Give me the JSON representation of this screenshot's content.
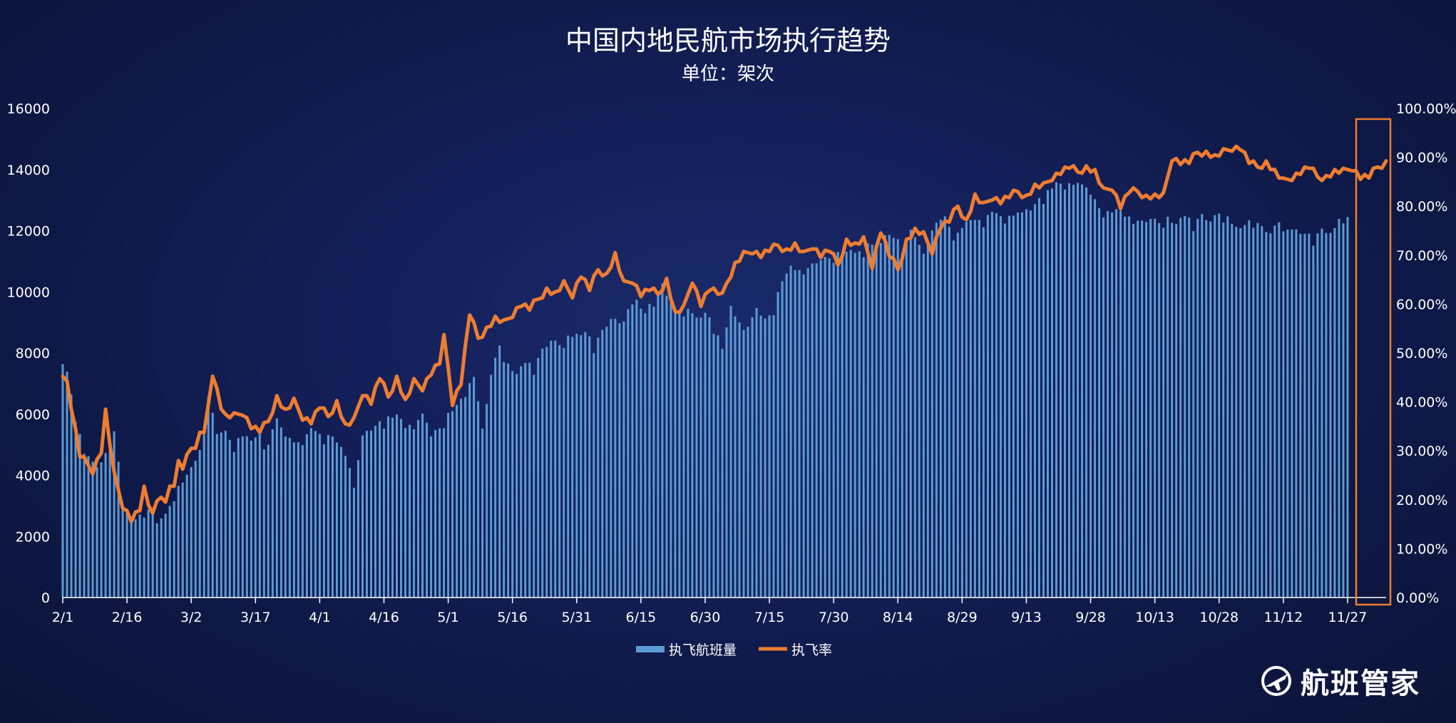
{
  "colors": {
    "bar": "#5b9bd5",
    "line": "#ed7d31",
    "highlight_box": "#ed7d31",
    "text": "#ffffff",
    "axis": "#ffffff"
  },
  "brand": {
    "name": "航班管家",
    "icon": "plane-globe-logo"
  },
  "chart_data": {
    "type": "bar+line",
    "title": "中国内地民航市场执行趋势",
    "subtitle": "单位：架次",
    "x_tick_labels": [
      "2/1",
      "2/16",
      "3/2",
      "3/17",
      "4/1",
      "4/16",
      "5/1",
      "5/16",
      "5/31",
      "6/15",
      "6/30",
      "7/15",
      "7/30",
      "8/14",
      "8/29",
      "9/13",
      "9/28",
      "10/13",
      "10/28",
      "11/12",
      "11/27"
    ],
    "y_left": {
      "ticks": [
        "0",
        "2000",
        "4000",
        "6000",
        "8000",
        "10000",
        "12000",
        "14000",
        "16000"
      ],
      "ylim": [
        0,
        16000
      ]
    },
    "y_right": {
      "ticks": [
        "0.00%",
        "10.00%",
        "20.00%",
        "30.00%",
        "40.00%",
        "50.00%",
        "60.00%",
        "70.00%",
        "80.00%",
        "90.00%",
        "100.00%"
      ],
      "ylim": [
        0,
        100
      ]
    },
    "legend": {
      "placement": "bottom-center",
      "items": [
        "执飞航班量",
        "执飞率"
      ]
    },
    "highlight": {
      "description": "last week of series boxed",
      "from_day": 303,
      "to_day": 309
    },
    "days": 310,
    "series": [
      {
        "name": "执飞航班量",
        "type": "bar",
        "axis": "left",
        "anchor_days": [
          0,
          1,
          3,
          5,
          8,
          10,
          12,
          14,
          16,
          18,
          20,
          22,
          24,
          26,
          28,
          30,
          32,
          34,
          36,
          38,
          40,
          42,
          44,
          46,
          48,
          50,
          52,
          54,
          56,
          58,
          60,
          62,
          64,
          66,
          68,
          70,
          72,
          74,
          76,
          78,
          80,
          82,
          84,
          86,
          88,
          90,
          92,
          94,
          96,
          98,
          100,
          102,
          104,
          106,
          108,
          110,
          112,
          114,
          116,
          118,
          120,
          122,
          124,
          126,
          128,
          130,
          132,
          134,
          136,
          138,
          140,
          142,
          144,
          146,
          148,
          150,
          152,
          154,
          156,
          158,
          160,
          162,
          164,
          166,
          168,
          170,
          172,
          174,
          176,
          178,
          180,
          182,
          184,
          186,
          188,
          190,
          192,
          194,
          196,
          198,
          200,
          202,
          204,
          206,
          208,
          210,
          212,
          214,
          216,
          218,
          220,
          222,
          224,
          226,
          228,
          230,
          232,
          234,
          236,
          238,
          240,
          242,
          244,
          246,
          248,
          250,
          252,
          254,
          256,
          258,
          260,
          262,
          264,
          266,
          268,
          270,
          272,
          274,
          276,
          278,
          280,
          282,
          284,
          286,
          288,
          290,
          292,
          294,
          296,
          298,
          300,
          302,
          304,
          306,
          308,
          309
        ],
        "anchor_values": [
          7700,
          7400,
          5800,
          4900,
          4200,
          4700,
          5700,
          3100,
          2500,
          2700,
          2900,
          2500,
          2700,
          3400,
          3800,
          4200,
          4800,
          6600,
          5400,
          5400,
          5000,
          5300,
          5200,
          5300,
          5000,
          5900,
          5200,
          5300,
          5000,
          5600,
          5300,
          5300,
          5100,
          4700,
          3800,
          5300,
          5500,
          5700,
          5900,
          6000,
          5600,
          5700,
          6000,
          5300,
          5600,
          6000,
          6300,
          6600,
          7400,
          5500,
          7300,
          8300,
          7600,
          7300,
          7700,
          7600,
          8100,
          8400,
          8300,
          8500,
          8600,
          8700,
          8300,
          8700,
          9100,
          9000,
          9500,
          9700,
          9300,
          9800,
          10200,
          9600,
          9300,
          9500,
          9100,
          9300,
          8900,
          8200,
          9500,
          9000,
          8900,
          9400,
          9100,
          9500,
          10400,
          10800,
          10700,
          10800,
          11000,
          11100,
          11200,
          11300,
          11300,
          11300,
          11600,
          11400,
          11800,
          12000,
          11300,
          12100,
          11500,
          11600,
          12300,
          12400,
          11900,
          12100,
          12400,
          12300,
          12500,
          12600,
          12300,
          12700,
          12600,
          12700,
          13000,
          13300,
          13600,
          13400,
          13700,
          13500,
          13200,
          12800,
          12600,
          12700,
          12500,
          12400,
          12300,
          12400,
          12300,
          12400,
          12200,
          12500,
          12300,
          12500,
          12300,
          12600,
          12400,
          12100,
          12200,
          12400,
          12100,
          11900,
          12300,
          12100,
          12000,
          11900,
          11800,
          12000,
          11900,
          12400,
          12500
        ]
      },
      {
        "name": "执飞率",
        "type": "line",
        "axis": "right",
        "anchor_days": [
          0,
          1,
          3,
          4,
          5,
          7,
          9,
          10,
          12,
          14,
          16,
          18,
          19,
          20,
          21,
          23,
          24,
          25,
          26,
          27,
          28,
          30,
          31,
          32,
          33,
          35,
          37,
          38,
          40,
          42,
          44,
          46,
          48,
          50,
          52,
          54,
          56,
          58,
          60,
          62,
          64,
          66,
          68,
          70,
          72,
          74,
          76,
          78,
          80,
          82,
          84,
          86,
          88,
          89,
          90,
          91,
          93,
          95,
          97,
          99,
          101,
          103,
          105,
          107,
          109,
          111,
          113,
          115,
          117,
          119,
          121,
          123,
          125,
          127,
          129,
          131,
          133,
          135,
          137,
          139,
          141,
          143,
          145,
          147,
          149,
          151,
          153,
          155,
          157,
          159,
          161,
          163,
          165,
          167,
          169,
          171,
          173,
          175,
          177,
          179,
          181,
          183,
          185,
          187,
          189,
          191,
          193,
          195,
          197,
          199,
          201,
          203,
          205,
          207,
          209,
          211,
          213,
          215,
          217,
          219,
          221,
          223,
          225,
          227,
          229,
          231,
          233,
          235,
          237,
          239,
          241,
          243,
          245,
          247,
          249,
          251,
          253,
          255,
          257,
          259,
          261,
          263,
          265,
          267,
          269,
          271,
          273,
          275,
          277,
          279,
          281,
          283,
          285,
          287,
          289,
          291,
          293,
          295,
          297,
          299,
          301,
          303,
          305,
          307,
          309
        ],
        "anchor_values": [
          46,
          44,
          34,
          29,
          28,
          26,
          30,
          38,
          25,
          19,
          16,
          18,
          22,
          19,
          18,
          21,
          19,
          23,
          22,
          28,
          27,
          31,
          30,
          34,
          33,
          46,
          39,
          37,
          37,
          38,
          35,
          34,
          36,
          41,
          38,
          40,
          37,
          36,
          39,
          37,
          40,
          35,
          36,
          42,
          40,
          45,
          41,
          45,
          40,
          44,
          43,
          46,
          48,
          53,
          47,
          40,
          44,
          58,
          53,
          55,
          57,
          56,
          58,
          60,
          59,
          61,
          63,
          62,
          64,
          62,
          66,
          63,
          67,
          66,
          70,
          64,
          65,
          62,
          63,
          62,
          65,
          58,
          59,
          65,
          60,
          63,
          62,
          64,
          68,
          70,
          71,
          70,
          71,
          72,
          71,
          72,
          70,
          72,
          70,
          71,
          68,
          73,
          72,
          73,
          68,
          75,
          70,
          67,
          73,
          75,
          74,
          71,
          76,
          77,
          80,
          77,
          82,
          80,
          82,
          81,
          82,
          83,
          82,
          84,
          84,
          86,
          87,
          88,
          87,
          88,
          87,
          83,
          84,
          80,
          83,
          83,
          82,
          82,
          82,
          90,
          89,
          89,
          91,
          91,
          90,
          91,
          92,
          92,
          89,
          88,
          89,
          87,
          85,
          86,
          87,
          88,
          86,
          86,
          87,
          87,
          88,
          86,
          86,
          88,
          89
        ]
      }
    ]
  }
}
